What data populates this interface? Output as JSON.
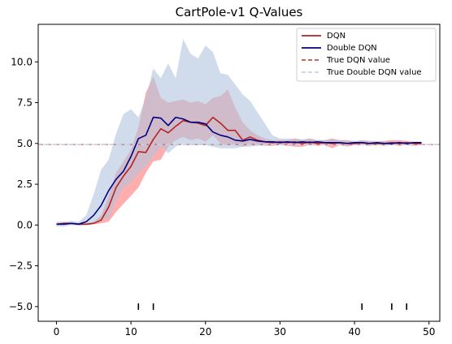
{
  "chart_data": {
    "type": "line",
    "title": "CartPole-v1 Q-Values",
    "xlabel": "",
    "ylabel": "",
    "xlim": [
      -2.45,
      51.45
    ],
    "ylim": [
      -5.9,
      12.3
    ],
    "xticks": [
      0,
      10,
      20,
      30,
      40,
      50
    ],
    "xtick_labels": [
      "0",
      "10",
      "20",
      "30",
      "40",
      "50"
    ],
    "yticks": [
      -5.0,
      -2.5,
      0.0,
      2.5,
      5.0,
      7.5,
      10.0
    ],
    "ytick_labels": [
      "−5.0",
      "−2.5",
      "0.0",
      "2.5",
      "5.0",
      "7.5",
      "10.0"
    ],
    "grid": false,
    "legend_position": "top-right",
    "legend": [
      {
        "label": "DQN",
        "style": "solid",
        "color": "#b22222"
      },
      {
        "label": "Double DQN",
        "style": "solid",
        "color": "#000080"
      },
      {
        "label": "True DQN value",
        "style": "dashed",
        "color": "#c0504d"
      },
      {
        "label": "True Double DQN value",
        "style": "dashed",
        "color": "#c6d4e8"
      }
    ],
    "x": [
      0,
      1,
      2,
      3,
      4,
      5,
      6,
      7,
      8,
      9,
      10,
      11,
      12,
      13,
      14,
      15,
      16,
      17,
      18,
      19,
      20,
      21,
      22,
      23,
      24,
      25,
      26,
      27,
      28,
      29,
      30,
      31,
      32,
      33,
      34,
      35,
      36,
      37,
      38,
      39,
      40,
      41,
      42,
      43,
      44,
      45,
      46,
      47,
      48,
      49
    ],
    "series": [
      {
        "name": "DQN",
        "color": "#b22222",
        "values": [
          0.05,
          0.1,
          0.1,
          0.05,
          0.05,
          0.1,
          0.3,
          1.1,
          2.3,
          3.0,
          3.6,
          4.5,
          4.45,
          5.25,
          5.9,
          5.65,
          6.05,
          6.4,
          6.3,
          6.25,
          6.1,
          6.6,
          6.25,
          5.8,
          5.8,
          5.2,
          5.4,
          5.2,
          5.1,
          5.05,
          5.1,
          5.05,
          5.1,
          5.0,
          5.1,
          5.0,
          5.05,
          5.0,
          5.05,
          5.0,
          5.0,
          5.05,
          5.0,
          5.0,
          5.0,
          5.05,
          5.0,
          5.05,
          5.0,
          5.0
        ],
        "band_lower": [
          0.0,
          0.05,
          0.05,
          0.0,
          0.0,
          0.05,
          0.1,
          0.2,
          0.8,
          1.3,
          1.8,
          2.3,
          3.2,
          3.9,
          4.0,
          4.8,
          5.2,
          5.4,
          5.2,
          5.3,
          5.1,
          5.5,
          5.0,
          4.9,
          4.9,
          4.8,
          4.9,
          4.9,
          4.85,
          4.85,
          4.9,
          4.85,
          4.8,
          4.8,
          4.9,
          4.85,
          4.9,
          4.7,
          4.9,
          4.8,
          4.9,
          4.9,
          4.85,
          4.9,
          4.85,
          4.9,
          4.85,
          4.9,
          4.85,
          4.9
        ],
        "band_upper": [
          0.1,
          0.15,
          0.15,
          0.1,
          0.1,
          0.2,
          0.6,
          1.8,
          3.2,
          3.9,
          4.6,
          6.0,
          8.1,
          9.1,
          7.8,
          7.5,
          7.6,
          7.7,
          7.5,
          7.6,
          7.4,
          7.8,
          7.9,
          8.3,
          7.2,
          6.3,
          5.8,
          5.5,
          5.3,
          5.2,
          5.2,
          5.2,
          5.3,
          5.2,
          5.3,
          5.2,
          5.2,
          5.3,
          5.2,
          5.2,
          5.1,
          5.2,
          5.15,
          5.1,
          5.15,
          5.2,
          5.2,
          5.15,
          5.1,
          5.1
        ]
      },
      {
        "name": "Double DQN",
        "color": "#000080",
        "values": [
          0.05,
          0.05,
          0.1,
          0.05,
          0.2,
          0.6,
          1.2,
          2.1,
          2.8,
          3.3,
          4.2,
          5.3,
          5.5,
          6.6,
          6.55,
          6.1,
          6.6,
          6.5,
          6.3,
          6.3,
          6.2,
          5.7,
          5.5,
          5.4,
          5.2,
          5.15,
          5.25,
          5.15,
          5.1,
          5.1,
          5.05,
          5.1,
          5.05,
          5.1,
          5.05,
          5.1,
          5.05,
          5.05,
          5.05,
          5.0,
          5.05,
          5.05,
          5.0,
          5.05,
          5.0,
          5.0,
          5.05,
          5.0,
          5.05,
          5.05
        ],
        "band_lower": [
          -0.1,
          -0.1,
          0.0,
          -0.05,
          0.0,
          0.1,
          0.3,
          0.4,
          1.5,
          2.3,
          2.6,
          3.2,
          3.6,
          4.2,
          4.8,
          4.4,
          4.8,
          5.0,
          4.9,
          4.9,
          4.9,
          4.8,
          4.7,
          4.7,
          4.7,
          4.8,
          4.8,
          4.85,
          4.9,
          4.9,
          4.9,
          4.9,
          4.95,
          4.9,
          4.95,
          4.95,
          4.95,
          4.95,
          4.95,
          4.9,
          4.95,
          4.95,
          4.95,
          4.95,
          4.95,
          4.95,
          4.95,
          4.95,
          4.95,
          4.95
        ],
        "band_upper": [
          0.2,
          0.2,
          0.25,
          0.2,
          0.6,
          1.9,
          3.4,
          4.0,
          5.6,
          6.8,
          7.1,
          6.6,
          7.8,
          9.6,
          9.0,
          9.9,
          9.0,
          11.4,
          10.5,
          10.2,
          11.0,
          10.6,
          9.3,
          9.2,
          8.6,
          8.0,
          7.6,
          6.9,
          6.2,
          5.5,
          5.3,
          5.3,
          5.3,
          5.25,
          5.3,
          5.2,
          5.2,
          5.25,
          5.2,
          5.2,
          5.15,
          5.2,
          5.15,
          5.15,
          5.15,
          5.15,
          5.1,
          5.1,
          5.1,
          5.1
        ]
      }
    ],
    "reference_lines": [
      {
        "name": "True DQN value",
        "y": 4.93,
        "color": "#c0504d"
      },
      {
        "name": "True Double DQN value",
        "y": 4.93,
        "color": "#c6d4e8"
      }
    ],
    "event_markers": {
      "y": -5.0,
      "x": [
        11,
        13,
        41,
        45,
        47
      ]
    }
  }
}
